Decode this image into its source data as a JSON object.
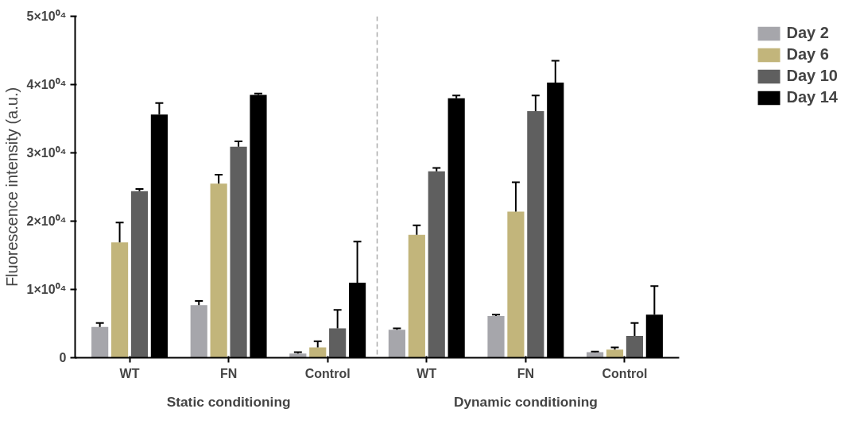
{
  "chart_data": {
    "type": "bar",
    "ylabel": "Fluorescence intensity (a.u.)",
    "categories": [
      "WT",
      "FN",
      "Control",
      "WT",
      "FN",
      "Control"
    ],
    "series": [
      {
        "name": "Day 2",
        "color": "#a6a6ab",
        "values": [
          4500,
          7700,
          600,
          4100,
          6100,
          800
        ],
        "errors": [
          [
            4500,
            5100
          ],
          [
            7700,
            8300
          ],
          [
            600,
            800
          ],
          [
            4100,
            4300
          ],
          [
            6100,
            6300
          ],
          [
            800,
            900
          ]
        ]
      },
      {
        "name": "Day 6",
        "color": "#c2b57b",
        "values": [
          16900,
          25500,
          1500,
          18000,
          21400,
          1200
        ],
        "errors": [
          [
            16900,
            19800
          ],
          [
            25500,
            26800
          ],
          [
            1500,
            2400
          ],
          [
            18000,
            19400
          ],
          [
            21400,
            25700
          ],
          [
            1200,
            1500
          ]
        ]
      },
      {
        "name": "Day 10",
        "color": "#5f5f5f",
        "values": [
          24400,
          30900,
          4300,
          27300,
          36100,
          3200
        ],
        "errors": [
          [
            24400,
            24700
          ],
          [
            30900,
            31700
          ],
          [
            4300,
            7000
          ],
          [
            27300,
            27800
          ],
          [
            36100,
            38400
          ],
          [
            3200,
            5100
          ]
        ]
      },
      {
        "name": "Day 14",
        "color": "#000000",
        "values": [
          35600,
          38500,
          11000,
          38000,
          40300,
          6300
        ],
        "errors": [
          [
            35600,
            37300
          ],
          [
            38500,
            38700
          ],
          [
            11000,
            17000
          ],
          [
            38000,
            38400
          ],
          [
            40300,
            43500
          ],
          [
            6300,
            10500
          ]
        ]
      }
    ],
    "ylim": [
      0,
      50000
    ],
    "yticks": [
      0,
      {
        "value": 10000,
        "label": "1×10⁰⁴"
      },
      {
        "value": 20000,
        "label": "2×10⁰⁴"
      },
      {
        "value": 30000,
        "label": "3×10⁰⁴"
      },
      {
        "value": 40000,
        "label": "4×10⁰⁴"
      },
      {
        "value": 50000,
        "label": "5×10⁰⁴"
      }
    ],
    "annotations": [
      "Static conditioning",
      "Dynamic conditioning"
    ],
    "grid": false,
    "legend": "top right"
  }
}
